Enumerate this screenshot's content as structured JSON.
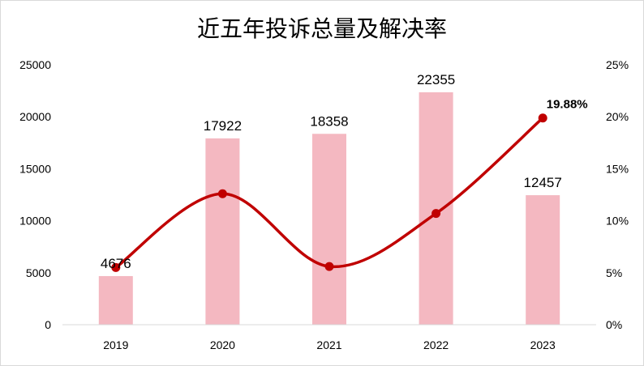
{
  "chart_data": {
    "type": "bar",
    "title": "近五年投诉总量及解决率",
    "categories": [
      "2019",
      "2020",
      "2021",
      "2022",
      "2023"
    ],
    "series": [
      {
        "kind": "bar",
        "axis": "left",
        "color": "#F4B8C1",
        "values": [
          4676,
          17922,
          18358,
          22355,
          12457
        ],
        "data_labels": [
          "4676",
          "17922",
          "18358",
          "22355",
          "12457"
        ]
      },
      {
        "kind": "line",
        "axis": "right",
        "smooth": true,
        "color": "#C00000",
        "values": [
          5.5,
          12.6,
          5.6,
          10.7,
          19.88
        ],
        "highlight_label": {
          "index": 4,
          "text": "19.88%"
        }
      }
    ],
    "y_left": {
      "ylim": [
        0,
        25000
      ],
      "ticks": [
        "0",
        "5000",
        "10000",
        "15000",
        "20000",
        "25000"
      ]
    },
    "y_right": {
      "ylim": [
        0,
        25
      ],
      "ticks": [
        "0%",
        "5%",
        "10%",
        "15%",
        "20%",
        "25%"
      ]
    },
    "grid": false,
    "legend": false
  }
}
